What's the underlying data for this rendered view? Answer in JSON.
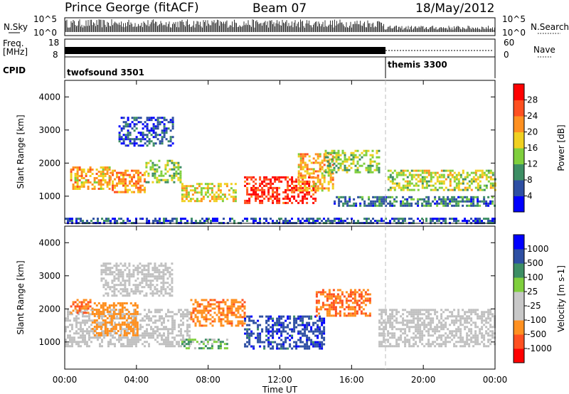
{
  "header": {
    "site": "Prince George (fitACF)",
    "beam": "Beam 07",
    "date": "18/May/2012"
  },
  "top_panels": {
    "nsky_label": "N.Sky",
    "nsky_ticks": [
      "10^5",
      "10^0"
    ],
    "nsearch_label": "N.Search",
    "nsearch_ticks": [
      "10^5",
      "10^0"
    ],
    "freq_label_1": "Freq.",
    "freq_label_2": "[MHz]",
    "freq_ticks": [
      "18",
      "8"
    ],
    "nave_label": "Nave",
    "nave_ticks": [
      "60",
      "0"
    ],
    "cpid_label": "CPID",
    "cpid_1": "twofsound 3501",
    "cpid_2": "themis 3300"
  },
  "colors": {
    "power_scale": [
      "#0000ff",
      "#2e4fa3",
      "#3d8e64",
      "#7fcf3d",
      "#f0d020",
      "#ff9020",
      "#ff5020",
      "#ff0000"
    ],
    "velocity_scale": [
      "#ff0000",
      "#ff5020",
      "#ff9020",
      "#c8c8c8",
      "#c8c8c8",
      "#7fcf3d",
      "#3d8e64",
      "#2e4fa3",
      "#0000ff"
    ],
    "ground_scatter": "#c0c0c0"
  },
  "chart_data": [
    {
      "type": "heatmap",
      "title": "Power",
      "xlabel": "",
      "ylabel": "Slant Range [km]",
      "colorbar_label": "Power [dB]",
      "colorbar_ticks": [
        "4",
        "8",
        "12",
        "16",
        "20",
        "24",
        "28"
      ],
      "x_range_hours": [
        0,
        24
      ],
      "ylim": [
        180,
        4500
      ],
      "y_ticks": [
        "1000",
        "2000",
        "3000",
        "4000"
      ],
      "x_ticks": [
        "00:00",
        "04:00",
        "08:00",
        "12:00",
        "16:00",
        "20:00",
        "00:00"
      ],
      "regions": [
        {
          "t0": 0.3,
          "t1": 2.5,
          "r0": 1250,
          "r1": 1900,
          "value": 20
        },
        {
          "t0": 2.5,
          "t1": 4.5,
          "r0": 1100,
          "r1": 1800,
          "value": 22
        },
        {
          "t0": 4.5,
          "t1": 6.5,
          "r0": 1400,
          "r1": 2100,
          "value": 14
        },
        {
          "t0": 3.0,
          "t1": 6.0,
          "r0": 2500,
          "r1": 3400,
          "value": 6
        },
        {
          "t0": 6.5,
          "t1": 9.5,
          "r0": 850,
          "r1": 1400,
          "value": 18
        },
        {
          "t0": 10.0,
          "t1": 14.0,
          "r0": 800,
          "r1": 1600,
          "value": 28
        },
        {
          "t0": 13.0,
          "t1": 15.0,
          "r0": 1200,
          "r1": 2300,
          "value": 20
        },
        {
          "t0": 14.5,
          "t1": 17.5,
          "r0": 1700,
          "r1": 2400,
          "value": 14
        },
        {
          "t0": 18.0,
          "t1": 24.0,
          "r0": 1200,
          "r1": 1800,
          "value": 16
        },
        {
          "t0": 15.0,
          "t1": 24.0,
          "r0": 700,
          "r1": 1000,
          "value": 8
        },
        {
          "t0": 0.0,
          "t1": 24.0,
          "r0": 200,
          "r1": 350,
          "value": 6
        }
      ]
    },
    {
      "type": "heatmap",
      "title": "Velocity",
      "xlabel": "Time UT",
      "ylabel": "Slant Range [km]",
      "colorbar_label": "Velocity [m s-1]",
      "colorbar_ticks": [
        "-1000",
        "-500",
        "-100",
        "-25",
        "25",
        "100",
        "500",
        "1000"
      ],
      "x_range_hours": [
        0,
        24
      ],
      "ylim": [
        180,
        4500
      ],
      "y_ticks": [
        "1000",
        "2000",
        "3000",
        "4000"
      ],
      "x_ticks": [
        "00:00",
        "04:00",
        "08:00",
        "12:00",
        "16:00",
        "20:00",
        "00:00"
      ],
      "regions": [
        {
          "t0": 0.0,
          "t1": 7.0,
          "r0": 900,
          "r1": 2000,
          "value": 0
        },
        {
          "t0": 0.3,
          "t1": 1.5,
          "r0": 1900,
          "r1": 2300,
          "value": -500
        },
        {
          "t0": 1.5,
          "t1": 4.0,
          "r0": 1200,
          "r1": 2200,
          "value": -300
        },
        {
          "t0": 6.5,
          "t1": 9.0,
          "r0": 800,
          "r1": 1100,
          "value": 100
        },
        {
          "t0": 7.0,
          "t1": 10.0,
          "r0": 1500,
          "r1": 2300,
          "value": -400
        },
        {
          "t0": 10.0,
          "t1": 14.5,
          "r0": 800,
          "r1": 1800,
          "value": 800
        },
        {
          "t0": 14.0,
          "t1": 17.0,
          "r0": 1800,
          "r1": 2600,
          "value": -500
        },
        {
          "t0": 17.5,
          "t1": 24.0,
          "r0": 900,
          "r1": 2000,
          "value": 0
        },
        {
          "t0": 2.0,
          "t1": 6.0,
          "r0": 2400,
          "r1": 3400,
          "value": 0
        }
      ]
    }
  ]
}
